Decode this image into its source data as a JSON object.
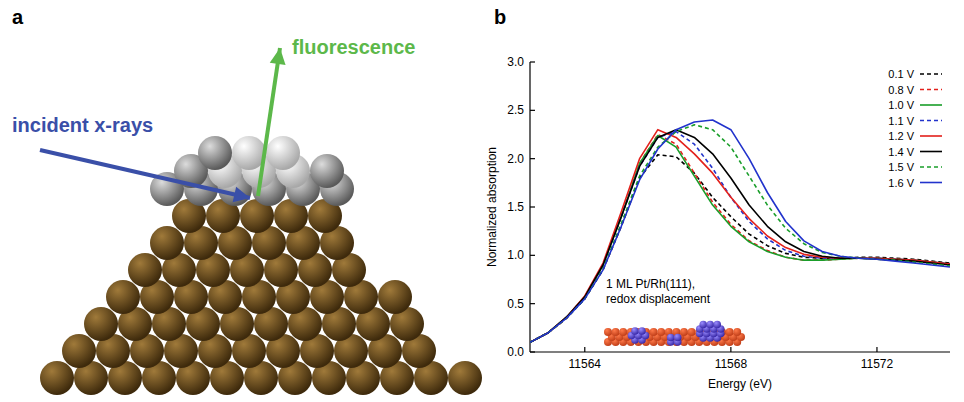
{
  "panel_labels": [
    "a",
    "b"
  ],
  "diagram": {
    "incident_label": "incident x-rays",
    "emission_label": "fluorescence"
  },
  "chart_data": {
    "type": "line",
    "x_label": "Energy (eV)",
    "y_label": "Normalized absorption",
    "annotations": [
      "1 ML Pt/Rh(111),",
      "redox displacement"
    ],
    "x": [
      11562.5,
      11563,
      11563.5,
      11564,
      11564.5,
      11565,
      11565.5,
      11566,
      11566.5,
      11567,
      11567.5,
      11568,
      11568.5,
      11569,
      11569.5,
      11570,
      11570.5,
      11571,
      11571.5,
      11572,
      11572.5,
      11573,
      11573.5,
      11574
    ],
    "xlim": [
      11562.5,
      11574
    ],
    "ylim": [
      0,
      3
    ],
    "xticks": [
      11564,
      11568,
      11572
    ],
    "yticks": [
      {
        "value": 0,
        "label": "0.0"
      },
      {
        "value": 0.5,
        "label": "0.5"
      },
      {
        "value": 1,
        "label": "1.0"
      },
      {
        "value": 1.5,
        "label": "1.5"
      },
      {
        "value": 2,
        "label": "2.0"
      },
      {
        "value": 2.5,
        "label": "2.5"
      },
      {
        "value": 3,
        "label": "3.0"
      }
    ],
    "legend": "upper right",
    "series": [
      {
        "name": "0.1 V",
        "color": "#000000",
        "line_style": "dashed",
        "values": [
          0.1,
          0.2,
          0.35,
          0.55,
          0.85,
          1.3,
          1.8,
          2.04,
          2.02,
          1.85,
          1.6,
          1.4,
          1.22,
          1.1,
          1.02,
          0.98,
          0.97,
          0.97,
          0.98,
          0.98,
          0.97,
          0.96,
          0.94,
          0.92
        ]
      },
      {
        "name": "0.8 V",
        "color": "#e3201b",
        "line_style": "dashed",
        "values": [
          0.1,
          0.2,
          0.35,
          0.56,
          0.9,
          1.4,
          1.95,
          2.25,
          2.15,
          1.85,
          1.55,
          1.32,
          1.15,
          1.05,
          0.98,
          0.95,
          0.95,
          0.96,
          0.97,
          0.97,
          0.96,
          0.95,
          0.93,
          0.91
        ]
      },
      {
        "name": "1.0 V",
        "color": "#1a9e2a",
        "line_style": "solid",
        "values": [
          0.1,
          0.2,
          0.36,
          0.57,
          0.9,
          1.4,
          1.95,
          2.24,
          2.12,
          1.82,
          1.52,
          1.3,
          1.14,
          1.04,
          0.98,
          0.95,
          0.95,
          0.96,
          0.97,
          0.97,
          0.96,
          0.95,
          0.93,
          0.91
        ]
      },
      {
        "name": "1.1 V",
        "color": "#2233cc",
        "line_style": "dashed",
        "values": [
          0.1,
          0.2,
          0.36,
          0.57,
          0.9,
          1.4,
          1.92,
          2.22,
          2.28,
          2.15,
          1.9,
          1.6,
          1.35,
          1.17,
          1.05,
          0.99,
          0.97,
          0.97,
          0.97,
          0.97,
          0.96,
          0.95,
          0.93,
          0.91
        ]
      },
      {
        "name": "1.2 V",
        "color": "#e3201b",
        "line_style": "solid",
        "values": [
          0.1,
          0.2,
          0.36,
          0.58,
          0.92,
          1.45,
          2.0,
          2.3,
          2.22,
          2.05,
          1.85,
          1.6,
          1.38,
          1.2,
          1.08,
          1.01,
          0.98,
          0.97,
          0.97,
          0.97,
          0.96,
          0.95,
          0.93,
          0.91
        ]
      },
      {
        "name": "1.4 V",
        "color": "#000000",
        "line_style": "solid",
        "values": [
          0.1,
          0.2,
          0.36,
          0.57,
          0.9,
          1.4,
          1.92,
          2.22,
          2.3,
          2.22,
          2.05,
          1.8,
          1.52,
          1.3,
          1.14,
          1.04,
          0.99,
          0.97,
          0.97,
          0.96,
          0.95,
          0.94,
          0.92,
          0.9
        ]
      },
      {
        "name": "1.5 V",
        "color": "#1a9e2a",
        "line_style": "dashed",
        "values": [
          0.1,
          0.2,
          0.35,
          0.55,
          0.86,
          1.33,
          1.82,
          2.12,
          2.28,
          2.35,
          2.3,
          2.12,
          1.82,
          1.52,
          1.28,
          1.12,
          1.03,
          0.99,
          0.97,
          0.96,
          0.95,
          0.93,
          0.91,
          0.89
        ]
      },
      {
        "name": "1.6 V",
        "color": "#2233cc",
        "line_style": "solid",
        "values": [
          0.1,
          0.2,
          0.35,
          0.55,
          0.85,
          1.3,
          1.78,
          2.1,
          2.3,
          2.38,
          2.4,
          2.3,
          2.0,
          1.65,
          1.35,
          1.15,
          1.04,
          0.99,
          0.97,
          0.96,
          0.94,
          0.92,
          0.9,
          0.88
        ]
      }
    ]
  }
}
